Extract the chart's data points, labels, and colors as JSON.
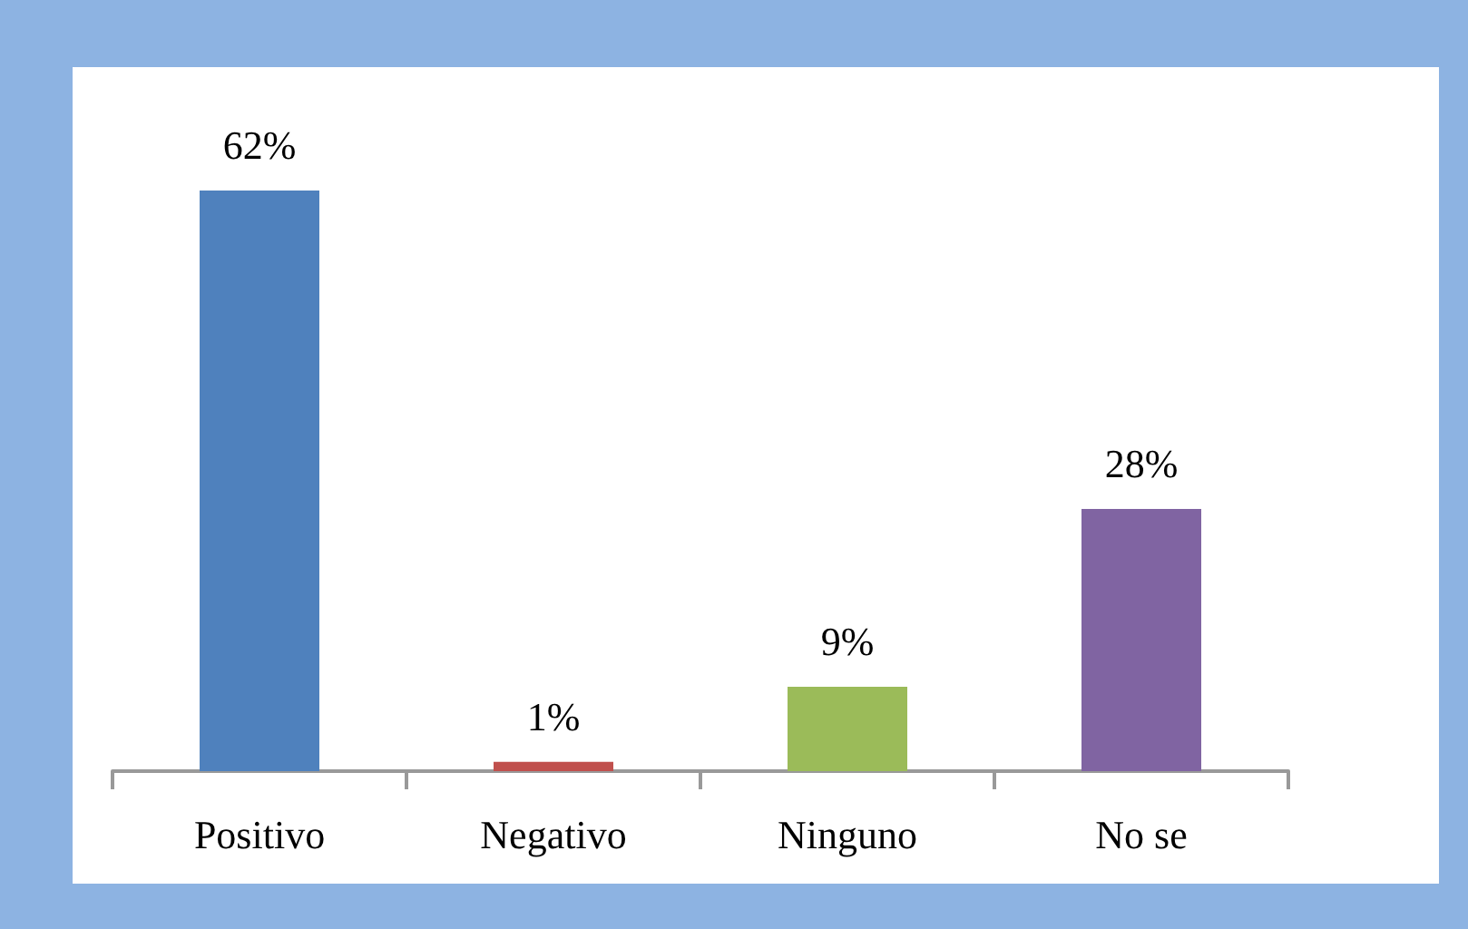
{
  "chart_data": {
    "type": "bar",
    "categories": [
      "Positivo",
      "Negativo",
      "Ninguno",
      "No se"
    ],
    "values": [
      62,
      1,
      9,
      28
    ],
    "value_labels": [
      "62%",
      "1%",
      "9%",
      "28%"
    ],
    "colors": [
      "#4f81bd",
      "#c0504d",
      "#9bbb59",
      "#8064a2"
    ],
    "tick_labels": "x"
  }
}
